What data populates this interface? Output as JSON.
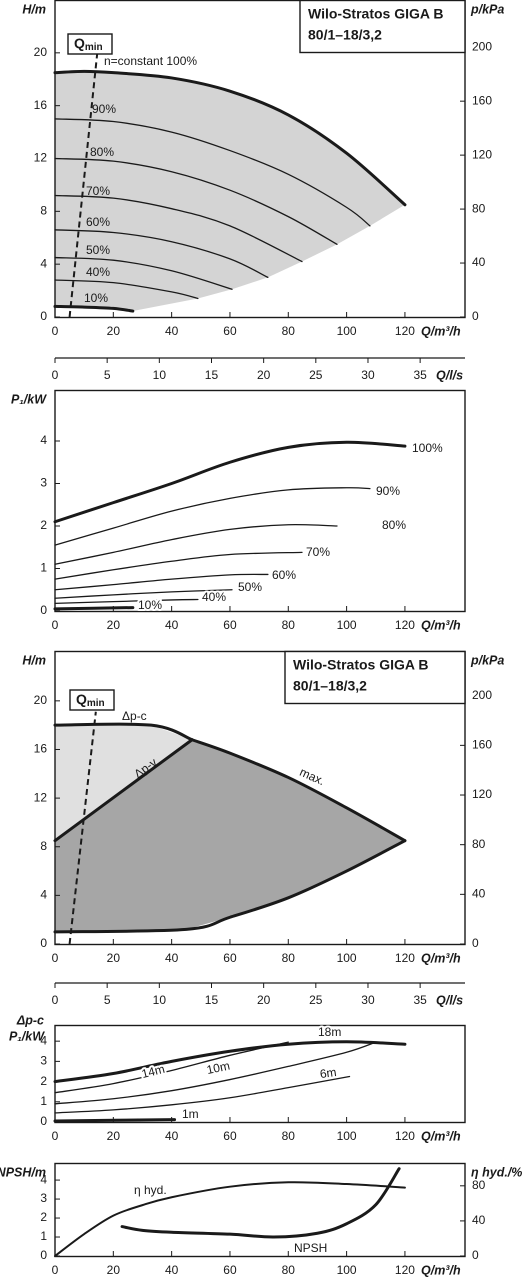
{
  "chart_data": [
    {
      "type": "line",
      "title": [
        "Wilo-Stratos GIGA B",
        "80/1–18/3,2"
      ],
      "ylabel": "H/m",
      "y2label": "p/kPa",
      "xlabel": "Q/m³/h",
      "xlim": [
        0,
        140.6
      ],
      "ylim": [
        0,
        24
      ],
      "y2lim": [
        0,
        235
      ],
      "xticks": [
        0,
        20,
        40,
        60,
        80,
        100,
        120
      ],
      "yticks": [
        0,
        4,
        8,
        12,
        16,
        20
      ],
      "y2ticks": [
        0,
        40,
        80,
        120,
        160,
        200
      ],
      "qmin_label": "Q",
      "qmin_sub": "min",
      "qmin_line": {
        "x": [
          5,
          14.5
        ],
        "values": [
          0,
          20
        ]
      },
      "fill_color": "#d4d4d4",
      "series": [
        {
          "name": "n=constant 100%",
          "color": "#1a1a1a",
          "line_width": 3,
          "x": [
            0,
            10,
            20,
            40,
            60,
            80,
            100,
            120
          ],
          "values": [
            18.5,
            18.6,
            18.5,
            18.1,
            17.1,
            15.3,
            12.4,
            8.5
          ]
        },
        {
          "name": "90%",
          "color": "#1a1a1a",
          "line_width": 1.3,
          "x": [
            0,
            20,
            40,
            60,
            80,
            100,
            108
          ],
          "values": [
            15,
            14.8,
            14,
            12.6,
            10.8,
            8.3,
            6.9
          ]
        },
        {
          "name": "80%",
          "color": "#1a1a1a",
          "line_width": 1.3,
          "x": [
            0,
            20,
            40,
            60,
            80,
            96.7
          ],
          "values": [
            12,
            11.8,
            11,
            9.6,
            7.6,
            5.5
          ]
        },
        {
          "name": "70%",
          "color": "#1a1a1a",
          "line_width": 1.3,
          "x": [
            0,
            20,
            40,
            60,
            84.7
          ],
          "values": [
            9.2,
            9,
            8.2,
            6.9,
            4.2
          ]
        },
        {
          "name": "60%",
          "color": "#1a1a1a",
          "line_width": 1.3,
          "x": [
            0,
            20,
            40,
            60,
            73
          ],
          "values": [
            6.6,
            6.4,
            5.7,
            4.4,
            3.0
          ]
        },
        {
          "name": "50%",
          "color": "#1a1a1a",
          "line_width": 1.3,
          "x": [
            0,
            20,
            40,
            60.7
          ],
          "values": [
            4.5,
            4.3,
            3.5,
            2.1
          ]
        },
        {
          "name": "40%",
          "color": "#1a1a1a",
          "line_width": 1.3,
          "x": [
            0,
            20,
            40,
            49
          ],
          "values": [
            2.8,
            2.6,
            1.9,
            1.4
          ]
        },
        {
          "name": "10%",
          "color": "#1a1a1a",
          "line_width": 3,
          "x": [
            0,
            10,
            20,
            26.7
          ],
          "values": [
            0.8,
            0.75,
            0.65,
            0.45
          ]
        }
      ]
    },
    {
      "type": "axis",
      "xlabel": "Q/l/s",
      "xlim": [
        0,
        39.3
      ],
      "xticks": [
        0,
        5,
        10,
        15,
        20,
        25,
        30,
        35
      ]
    },
    {
      "type": "line",
      "ylabel": "P₁/kW",
      "xlabel": "Q/m³/h",
      "xlim": [
        0,
        140.6
      ],
      "ylim": [
        0,
        5.2
      ],
      "xticks": [
        0,
        20,
        40,
        60,
        80,
        100,
        120
      ],
      "yticks": [
        0,
        1,
        2,
        3,
        4
      ],
      "series": [
        {
          "name": "100%",
          "color": "#1a1a1a",
          "line_width": 3,
          "x": [
            0,
            20,
            40,
            60,
            80,
            100,
            120
          ],
          "values": [
            2.1,
            2.55,
            3.0,
            3.5,
            3.85,
            3.97,
            3.88
          ]
        },
        {
          "name": "90%",
          "color": "#1a1a1a",
          "line_width": 1.3,
          "x": [
            0,
            20,
            40,
            60,
            80,
            100,
            108
          ],
          "values": [
            1.55,
            1.95,
            2.35,
            2.65,
            2.85,
            2.9,
            2.88
          ]
        },
        {
          "name": "80%",
          "color": "#1a1a1a",
          "line_width": 1.3,
          "x": [
            0,
            20,
            40,
            60,
            80,
            96.7
          ],
          "values": [
            1.1,
            1.38,
            1.68,
            1.92,
            2.03,
            2.0
          ]
        },
        {
          "name": "70%",
          "color": "#1a1a1a",
          "line_width": 1.3,
          "x": [
            0,
            20,
            40,
            60,
            84.7
          ],
          "values": [
            0.75,
            0.97,
            1.17,
            1.33,
            1.38
          ]
        },
        {
          "name": "60%",
          "color": "#1a1a1a",
          "line_width": 1.3,
          "x": [
            0,
            20,
            40,
            60,
            73
          ],
          "values": [
            0.5,
            0.62,
            0.75,
            0.85,
            0.86
          ]
        },
        {
          "name": "50%",
          "color": "#1a1a1a",
          "line_width": 1.3,
          "x": [
            0,
            20,
            40,
            60.7
          ],
          "values": [
            0.3,
            0.38,
            0.45,
            0.5
          ]
        },
        {
          "name": "40%",
          "color": "#1a1a1a",
          "line_width": 1.3,
          "x": [
            0,
            20,
            40,
            49
          ],
          "values": [
            0.18,
            0.22,
            0.26,
            0.27
          ]
        },
        {
          "name": "10%",
          "color": "#1a1a1a",
          "line_width": 3,
          "x": [
            0,
            26.7
          ],
          "values": [
            0.05,
            0.08
          ]
        }
      ]
    },
    {
      "type": "line",
      "title": [
        "Wilo-Stratos GIGA B",
        "80/1–18/3,2"
      ],
      "ylabel": "H/m",
      "y2label": "p/kPa",
      "xlabel": "Q/m³/h",
      "xlim": [
        0,
        140.6
      ],
      "ylim": [
        0,
        24.1
      ],
      "y2lim": [
        0,
        236
      ],
      "xticks": [
        0,
        20,
        40,
        60,
        80,
        100,
        120
      ],
      "yticks": [
        0,
        4,
        8,
        12,
        16,
        20
      ],
      "y2ticks": [
        0,
        40,
        80,
        120,
        160,
        200
      ],
      "qmin_label": "Q",
      "qmin_sub": "min",
      "qmin_line": {
        "x": [
          5,
          14
        ],
        "values": [
          0,
          19.1
        ]
      },
      "fill_colors": [
        "#e0e0e0",
        "#a6a6a6"
      ],
      "series": [
        {
          "name": "Δp-c",
          "color": "#1a1a1a",
          "line_width": 3,
          "x": [
            0,
            33,
            47
          ],
          "values": [
            18,
            18,
            16.8
          ]
        },
        {
          "name": "max.",
          "color": "#1a1a1a",
          "line_width": 3,
          "x": [
            47,
            60,
            80,
            100,
            120
          ],
          "values": [
            16.8,
            15.7,
            13.7,
            11.2,
            8.5
          ]
        },
        {
          "name": "Δp-v",
          "color": "#1a1a1a",
          "line_width": 3,
          "x": [
            0,
            47
          ],
          "values": [
            8.5,
            16.8
          ]
        },
        {
          "color": "#1a1a1a",
          "line_width": 3,
          "x": [
            0,
            45,
            60,
            80,
            100,
            120
          ],
          "values": [
            1,
            1.2,
            2.2,
            3.8,
            6,
            8.5
          ]
        }
      ]
    },
    {
      "type": "axis",
      "xlabel": "Q/l/s",
      "xlim": [
        0,
        39.3
      ],
      "xticks": [
        0,
        5,
        10,
        15,
        20,
        25,
        30,
        35
      ]
    },
    {
      "type": "line",
      "ylabel": [
        "Δp-c",
        "P₁/kW"
      ],
      "xlabel": "Q/m³/h",
      "xlim": [
        0,
        140.6
      ],
      "ylim": [
        0,
        4.8
      ],
      "xticks": [
        0,
        20,
        40,
        60,
        80,
        100,
        120
      ],
      "yticks": [
        0,
        1,
        2,
        3,
        4
      ],
      "series": [
        {
          "name": "18m",
          "color": "#1a1a1a",
          "line_width": 3,
          "x": [
            0,
            20,
            40,
            60,
            80,
            100,
            120
          ],
          "values": [
            2.0,
            2.4,
            3.0,
            3.5,
            3.85,
            3.97,
            3.85
          ]
        },
        {
          "name": "14m",
          "color": "#1a1a1a",
          "line_width": 1.3,
          "x": [
            0,
            20,
            40,
            60,
            80
          ],
          "values": [
            1.45,
            1.9,
            2.55,
            3.3,
            3.95
          ]
        },
        {
          "name": "10m",
          "color": "#1a1a1a",
          "line_width": 1.3,
          "x": [
            0,
            20,
            40,
            60,
            80,
            100,
            110
          ],
          "values": [
            0.9,
            1.15,
            1.55,
            2.1,
            2.75,
            3.45,
            3.95
          ]
        },
        {
          "name": "6m",
          "color": "#1a1a1a",
          "line_width": 1.3,
          "x": [
            0,
            20,
            40,
            60,
            80,
            101
          ],
          "values": [
            0.45,
            0.6,
            0.85,
            1.2,
            1.7,
            2.25
          ]
        },
        {
          "name": "1m",
          "color": "#1a1a1a",
          "line_width": 3,
          "x": [
            0,
            41
          ],
          "values": [
            0.05,
            0.12
          ]
        }
      ]
    },
    {
      "type": "line",
      "ylabel": "NPSH/m",
      "y2label": "η hyd./%",
      "xlabel": "Q/m³/h",
      "xlim": [
        0,
        140.6
      ],
      "ylim": [
        0,
        4.9
      ],
      "y2lim": [
        0,
        106
      ],
      "xticks": [
        0,
        20,
        40,
        60,
        80,
        100,
        120
      ],
      "yticks": [
        0,
        1,
        2,
        3,
        4
      ],
      "y2ticks": [
        0,
        40,
        80
      ],
      "series": [
        {
          "name": "η hyd.",
          "axis": "y2",
          "color": "#1a1a1a",
          "line_width": 2,
          "x": [
            0,
            10,
            20,
            30,
            40,
            60,
            80,
            100,
            120
          ],
          "values": [
            0,
            25,
            46,
            58,
            67,
            79,
            84,
            82,
            78
          ]
        },
        {
          "name": "NPSH",
          "color": "#1a1a1a",
          "line_width": 3,
          "x": [
            23,
            30,
            40,
            60,
            75,
            90,
            100,
            110,
            118
          ],
          "values": [
            1.55,
            1.35,
            1.25,
            1.15,
            1.0,
            1.2,
            1.7,
            2.7,
            4.6
          ]
        }
      ]
    }
  ]
}
